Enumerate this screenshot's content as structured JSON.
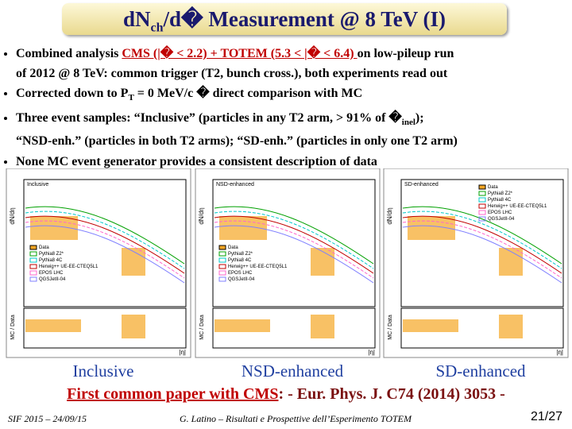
{
  "header": {
    "title": [
      "dN",
      "ch",
      "/d� Measurement @ 8 TeV (I)"
    ]
  },
  "bullets": [
    [
      [
        {
          "text": "Combined analysis "
        },
        {
          "text": "CMS (|� < 2.2) + TOTEM (5.3 < |� < 6.4) ",
          "link": true
        },
        {
          "text": "on low-pileup run"
        }
      ],
      [
        {
          "text": "of 2012 @ 8 TeV: common trigger (T2, bunch cross.), both experiments read out"
        }
      ]
    ],
    [
      [
        {
          "text": "Corrected down to P"
        },
        {
          "text": "T",
          "sub": true
        },
        {
          "text": " = 0 MeV/c � direct comparison with MC"
        }
      ]
    ],
    [
      [
        {
          "text": "Three event samples: “Inclusive” (particles in any T2 arm,  > 91% of �"
        },
        {
          "text": "inel",
          "sub": true
        },
        {
          "text": ");"
        }
      ],
      [
        {
          "text": "“NSD-enh.” (particles in both T2 arms); “SD-enh.” (particles in only one T2 arm)"
        }
      ]
    ],
    [
      [
        {
          "text": "None MC event generator provides a consistent description of data"
        }
      ]
    ]
  ],
  "panels": [
    {
      "tag": "Inclusive",
      "ylabel": "dN/dη",
      "ratio_label": "MC / Data",
      "xlabel": "|η|",
      "legend": [
        "Data",
        "Pythia8 Z2*",
        "Pythia8 4C",
        "Herwig++ UE-EE-CTEQ5L1",
        "EPOS LHC",
        "QGSJetII-04"
      ],
      "caption": "Inclusive"
    },
    {
      "tag": "NSD-enhanced",
      "ylabel": "dN/dη",
      "ratio_label": "MC / Data",
      "xlabel": "|η|",
      "legend": [
        "Data",
        "Pythia8 Z2*",
        "Pythia8 4C",
        "Herwig++ UE-EE-CTEQ5L1",
        "EPOS LHC",
        "QGSJetII-04"
      ],
      "caption": "NSD-enhanced"
    },
    {
      "tag": "SD-enhanced",
      "ylabel": "dN/dη",
      "ratio_label": "MC / Data",
      "xlabel": "|η|",
      "legend": [
        "Data",
        "Pythia8 Z2*",
        "Pythia8 4C",
        "Herwig++ UE-EE-CTEQ5L1",
        "EPOS LHC",
        "QGSJetII-04"
      ],
      "caption": "SD-enhanced"
    }
  ],
  "reference": {
    "link": "First common paper with CMS",
    "text": ": - Eur. Phys. J. C74 (2014) 3053 -"
  },
  "footer": {
    "left": "SIF 2015 – 24/09/15",
    "center": "G. Latino – Risultati e Prospettive dell’Esperimento TOTEM",
    "page": "21/27"
  }
}
